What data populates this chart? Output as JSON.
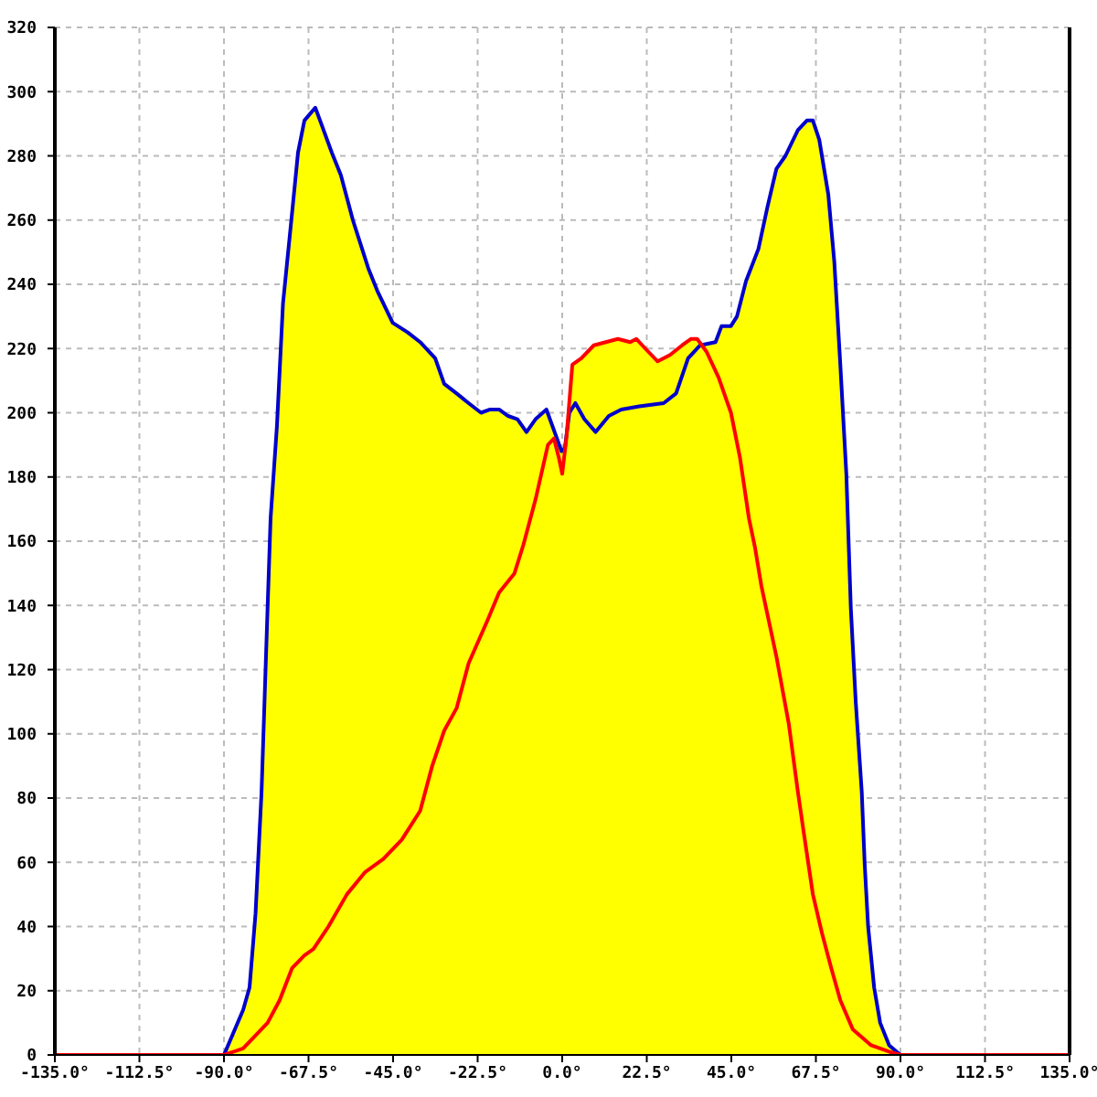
{
  "chart_data": {
    "type": "area",
    "xlim": [
      -135,
      135
    ],
    "xticks": [
      {
        "value": -135,
        "label": "-135.0°"
      },
      {
        "value": -112.5,
        "label": "-112.5°"
      },
      {
        "value": -90,
        "label": "-90.0°"
      },
      {
        "value": -67.5,
        "label": "-67.5°"
      },
      {
        "value": -45,
        "label": "-45.0°"
      },
      {
        "value": -22.5,
        "label": "-22.5°"
      },
      {
        "value": 0,
        "label": "0.0°"
      },
      {
        "value": 22.5,
        "label": "22.5°"
      },
      {
        "value": 45,
        "label": "45.0°"
      },
      {
        "value": 67.5,
        "label": "67.5°"
      },
      {
        "value": 90,
        "label": "90.0°"
      },
      {
        "value": 112.5,
        "label": "112.5°"
      },
      {
        "value": 135,
        "label": "135.0°"
      }
    ],
    "ylim": [
      0,
      320
    ],
    "yticks": [
      0,
      20,
      40,
      60,
      80,
      100,
      120,
      140,
      160,
      180,
      200,
      220,
      240,
      260,
      280,
      300,
      320
    ],
    "grid": true,
    "series": [
      {
        "color": "#ffff00",
        "x": [
          -90,
          -84.9,
          -83.2,
          -81.6,
          -80,
          -78.4,
          -77.6,
          -75.9,
          -74.3,
          -71.9,
          -70.3,
          -68.6,
          -65.7,
          -63.8,
          -61.3,
          -58.9,
          -55.7,
          -51.6,
          -49.2,
          -45.1,
          -41.1,
          -37.8,
          -33.8,
          -31.4,
          -28.1,
          -24.9,
          -21.6,
          -19.2,
          -16.8,
          -14.4,
          -11.9,
          -9.5,
          -7.1,
          -4.2,
          -1.4,
          -0.2,
          0.7,
          1.1,
          2.7,
          5.1,
          8.4,
          11.6,
          14.8,
          18.1,
          19.7,
          22.1,
          25.4,
          28.7,
          31.9,
          34.3,
          35.9,
          37.1,
          40.8,
          42.4,
          44.9,
          46.5,
          48.9,
          52.2,
          54.6,
          57,
          59.4,
          62.7,
          65.1,
          66.7,
          68.4,
          70.8,
          72.4,
          74,
          75.6,
          76.8,
          78.1,
          79.7,
          80.5,
          81.4,
          83,
          84.6,
          87,
          90
        ],
        "values": [
          0,
          14,
          21,
          44,
          82,
          139,
          167,
          196,
          234,
          262,
          281,
          291,
          295,
          289,
          281,
          274,
          260,
          245,
          238,
          228,
          225,
          222,
          217,
          209,
          206,
          203,
          200,
          201,
          201,
          199,
          198,
          194,
          198,
          201,
          192,
          188,
          189,
          192,
          215,
          217,
          221,
          222,
          223,
          222,
          223,
          220,
          216,
          218,
          221,
          223,
          223,
          221,
          222,
          227,
          227,
          230,
          241,
          251,
          264,
          276,
          280,
          288,
          291,
          291,
          285,
          268,
          247,
          215,
          181,
          139,
          110,
          82,
          59,
          40,
          21,
          10,
          3,
          0
        ]
      },
      {
        "type": "line",
        "color": "#0000cc",
        "x": [
          -135,
          -90,
          -84.9,
          -83.2,
          -81.6,
          -80,
          -78.4,
          -77.6,
          -75.9,
          -74.3,
          -71.9,
          -70.3,
          -68.6,
          -65.7,
          -63.8,
          -61.3,
          -58.9,
          -55.7,
          -51.6,
          -49.2,
          -45.1,
          -41.1,
          -37.8,
          -33.8,
          -31.4,
          -28.1,
          -24.9,
          -21.6,
          -19.2,
          -16.8,
          -14.4,
          -11.9,
          -9.5,
          -7.1,
          -4.2,
          -1.4,
          -0.2,
          0.7,
          1.9,
          3.5,
          5.9,
          8.9,
          12.4,
          15.7,
          20.5,
          27,
          30.3,
          33.5,
          36.7,
          40.8,
          42.4,
          44.9,
          46.5,
          48.9,
          52.2,
          54.6,
          57,
          59.4,
          62.7,
          65.1,
          66.7,
          68.4,
          70.8,
          72.4,
          74,
          75.6,
          76.8,
          78.1,
          79.7,
          80.5,
          81.4,
          83,
          84.6,
          87,
          90,
          135
        ],
        "values": [
          0,
          0,
          14,
          21,
          44,
          82,
          139,
          167,
          196,
          234,
          262,
          281,
          291,
          295,
          289,
          281,
          274,
          260,
          245,
          238,
          228,
          225,
          222,
          217,
          209,
          206,
          203,
          200,
          201,
          201,
          199,
          198,
          194,
          198,
          201,
          192,
          188,
          189,
          200,
          203,
          198,
          194,
          199,
          201,
          202,
          203,
          206,
          217,
          221,
          222,
          227,
          227,
          230,
          241,
          251,
          264,
          276,
          280,
          288,
          291,
          291,
          285,
          268,
          247,
          215,
          181,
          139,
          110,
          82,
          59,
          40,
          21,
          10,
          3,
          0,
          0
        ]
      },
      {
        "type": "line",
        "color": "#ff0000",
        "x": [
          -135,
          -90,
          -84.9,
          -78.4,
          -75.2,
          -71.9,
          -68.6,
          -66.2,
          -62.2,
          -57.3,
          -52.4,
          -47.6,
          -42.7,
          -37.8,
          -34.6,
          -31.4,
          -28.1,
          -24.9,
          -20,
          -16.8,
          -12.7,
          -10.3,
          -7.1,
          -3.8,
          -2.2,
          -0.9,
          0,
          1.1,
          2.7,
          5.1,
          8.4,
          11.6,
          14.8,
          18.1,
          19.7,
          22.1,
          25.4,
          28.7,
          31.9,
          34.3,
          35.9,
          38.4,
          41.6,
          44.9,
          47.3,
          49.7,
          51.3,
          53,
          57,
          60.3,
          62.7,
          64.3,
          66.7,
          69.1,
          71.6,
          74,
          77.3,
          82.2,
          87,
          90,
          135
        ],
        "values": [
          0,
          0,
          2,
          10,
          17,
          27,
          31,
          33,
          40,
          50,
          57,
          61,
          67,
          76,
          90,
          101,
          108,
          122,
          135,
          144,
          150,
          159,
          173,
          190,
          192,
          186,
          181,
          192,
          215,
          217,
          221,
          222,
          223,
          222,
          223,
          220,
          216,
          218,
          221,
          223,
          223,
          219,
          211,
          200,
          186,
          167,
          158,
          146,
          124,
          103,
          82,
          69,
          50,
          38,
          27,
          17,
          8,
          3,
          1,
          0,
          0
        ]
      }
    ]
  }
}
